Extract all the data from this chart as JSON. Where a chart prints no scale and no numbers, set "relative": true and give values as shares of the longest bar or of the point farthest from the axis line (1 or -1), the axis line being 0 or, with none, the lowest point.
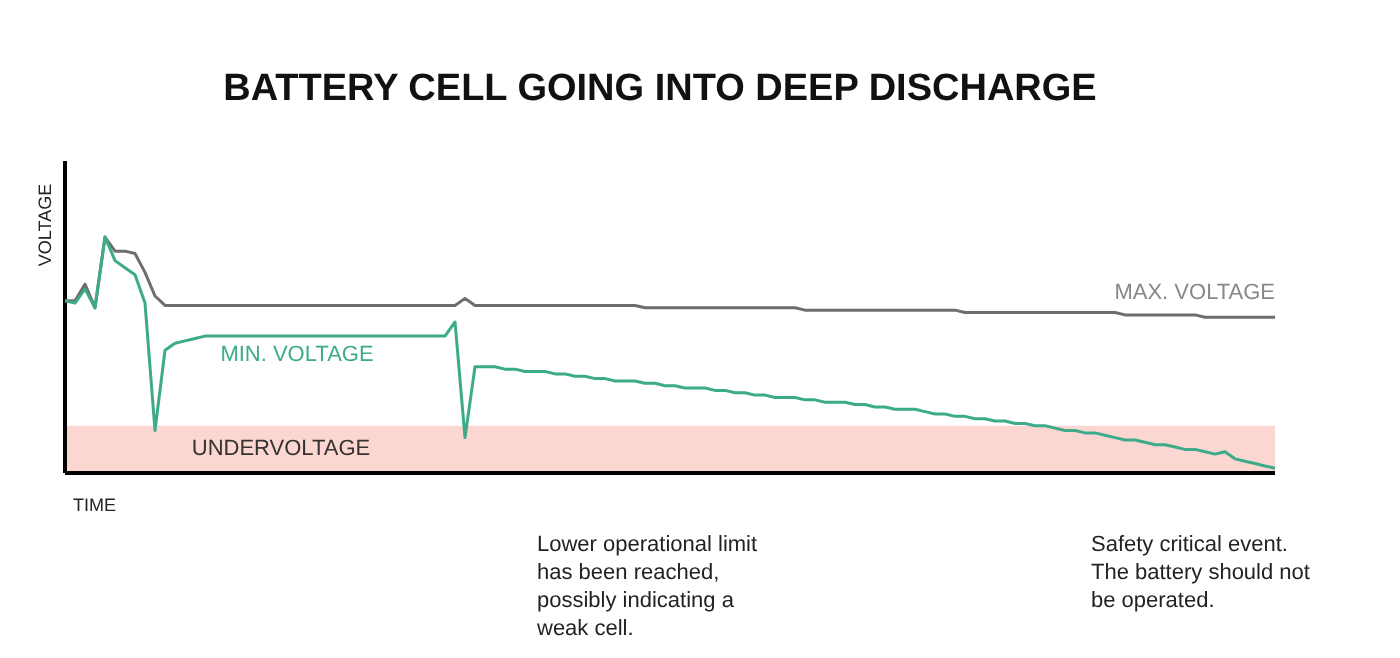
{
  "chart_data": {
    "type": "line",
    "relative": true,
    "title": "BATTERY CELL GOING INTO DEEP DISCHARGE",
    "xlabel": "TIME",
    "ylabel": "VOLTAGE",
    "grid": false,
    "legend": false,
    "categories": [
      null,
      null,
      null,
      null,
      null,
      null,
      null,
      null,
      null,
      null,
      null,
      null,
      null,
      null,
      null,
      null,
      null,
      null,
      null,
      null,
      null,
      null,
      null,
      null,
      null,
      null,
      null,
      null,
      null,
      null,
      null,
      null,
      null,
      null,
      null,
      null,
      null,
      null,
      null,
      null,
      null,
      null,
      null,
      null,
      null,
      null,
      null,
      null,
      null,
      null,
      null,
      null,
      null,
      null,
      null,
      null,
      null,
      null,
      null,
      null,
      null,
      null,
      null,
      null,
      null,
      null,
      null,
      null,
      null,
      null,
      null,
      null,
      null,
      null,
      null,
      null,
      null,
      null,
      null,
      null,
      null,
      null,
      null,
      null,
      null,
      null,
      null,
      null,
      null,
      null,
      null,
      null,
      null,
      null,
      null,
      null,
      null,
      null,
      null,
      null,
      null,
      null,
      null,
      null,
      null,
      null,
      null,
      null,
      null,
      null,
      null,
      null,
      null,
      null,
      null,
      null,
      null,
      null,
      null,
      null,
      null,
      null
    ],
    "series": [
      {
        "name": "MAX. VOLTAGE",
        "color": "#6d6d6d",
        "values": [
          0.73,
          0.73,
          0.8,
          0.7,
          1.0,
          0.94,
          0.94,
          0.93,
          0.85,
          0.75,
          0.71,
          0.71,
          0.71,
          0.71,
          0.71,
          0.71,
          0.71,
          0.71,
          0.71,
          0.71,
          0.71,
          0.71,
          0.71,
          0.71,
          0.71,
          0.71,
          0.71,
          0.71,
          0.71,
          0.71,
          0.71,
          0.71,
          0.71,
          0.71,
          0.71,
          0.71,
          0.71,
          0.71,
          0.71,
          0.71,
          0.74,
          0.71,
          0.71,
          0.71,
          0.71,
          0.71,
          0.71,
          0.71,
          0.71,
          0.71,
          0.71,
          0.71,
          0.71,
          0.71,
          0.71,
          0.71,
          0.71,
          0.71,
          0.7,
          0.7,
          0.7,
          0.7,
          0.7,
          0.7,
          0.7,
          0.7,
          0.7,
          0.7,
          0.7,
          0.7,
          0.7,
          0.7,
          0.7,
          0.7,
          0.69,
          0.69,
          0.69,
          0.69,
          0.69,
          0.69,
          0.69,
          0.69,
          0.69,
          0.69,
          0.69,
          0.69,
          0.69,
          0.69,
          0.69,
          0.69,
          0.68,
          0.68,
          0.68,
          0.68,
          0.68,
          0.68,
          0.68,
          0.68,
          0.68,
          0.68,
          0.68,
          0.68,
          0.68,
          0.68,
          0.68,
          0.68,
          0.67,
          0.67,
          0.67,
          0.67,
          0.67,
          0.67,
          0.67,
          0.67,
          0.66,
          0.66,
          0.66,
          0.66,
          0.66,
          0.66,
          0.66,
          0.66
        ]
      },
      {
        "name": "MIN. VOLTAGE",
        "color": "#3dab8a",
        "values": [
          0.73,
          0.72,
          0.78,
          0.7,
          1.0,
          0.9,
          0.87,
          0.84,
          0.72,
          0.18,
          0.52,
          0.55,
          0.56,
          0.57,
          0.58,
          0.58,
          0.58,
          0.58,
          0.58,
          0.58,
          0.58,
          0.58,
          0.58,
          0.58,
          0.58,
          0.58,
          0.58,
          0.58,
          0.58,
          0.58,
          0.58,
          0.58,
          0.58,
          0.58,
          0.58,
          0.58,
          0.58,
          0.58,
          0.58,
          0.64,
          0.15,
          0.45,
          0.45,
          0.45,
          0.44,
          0.44,
          0.43,
          0.43,
          0.43,
          0.42,
          0.42,
          0.41,
          0.41,
          0.4,
          0.4,
          0.39,
          0.39,
          0.39,
          0.38,
          0.38,
          0.37,
          0.37,
          0.36,
          0.36,
          0.36,
          0.35,
          0.35,
          0.34,
          0.34,
          0.33,
          0.33,
          0.32,
          0.32,
          0.32,
          0.31,
          0.31,
          0.3,
          0.3,
          0.3,
          0.29,
          0.29,
          0.28,
          0.28,
          0.27,
          0.27,
          0.27,
          0.26,
          0.25,
          0.25,
          0.24,
          0.24,
          0.23,
          0.23,
          0.22,
          0.22,
          0.21,
          0.21,
          0.2,
          0.2,
          0.19,
          0.18,
          0.18,
          0.17,
          0.17,
          0.16,
          0.15,
          0.14,
          0.14,
          0.13,
          0.12,
          0.12,
          0.11,
          0.1,
          0.1,
          0.09,
          0.08,
          0.09,
          0.06,
          0.05,
          0.04,
          0.03,
          0.02
        ]
      }
    ],
    "bands": [
      {
        "axis": "y",
        "from": 0,
        "to": 0.2,
        "label": "UNDERVOLTAGE",
        "color": "#fcd6d1"
      }
    ],
    "annotations": [
      "Lower operational limit has been reached, possibly indicating a weak cell.",
      "Safety critical event. The battery should not be operated."
    ]
  }
}
